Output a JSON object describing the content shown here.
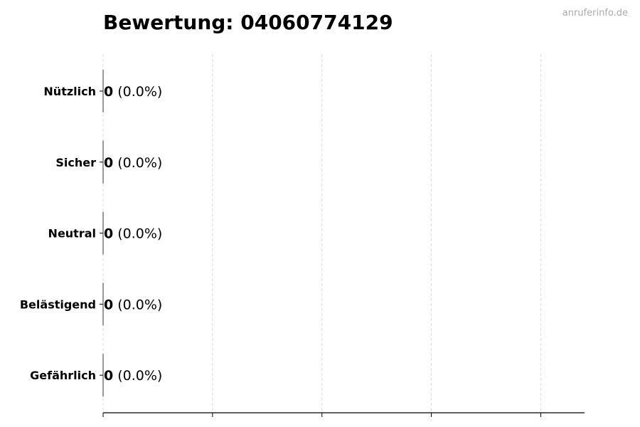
{
  "watermark": "anruferinfo.de",
  "chart_data": {
    "type": "bar",
    "orientation": "horizontal",
    "title": "Bewertung: 04060774129",
    "categories": [
      "Nützlich",
      "Sicher",
      "Neutral",
      "Belästigend",
      "Gefährlich"
    ],
    "values": [
      0,
      0,
      0,
      0,
      0
    ],
    "value_labels": [
      "0",
      "0",
      "0",
      "0",
      "0"
    ],
    "percent_labels": [
      "(0.0%)",
      "(0.0%)",
      "(0.0%)",
      "(0.0%)",
      "(0.0%)"
    ],
    "xlabel": "",
    "ylabel": "",
    "xlim": [
      0,
      4.4
    ],
    "xticks": [
      0,
      1,
      2,
      3,
      4
    ],
    "xtick_labels_shown": false,
    "grid": "vertical dashed",
    "colors": {
      "grid": "#d9d9d9",
      "axis": "#000000",
      "watermark": "#aaaaaa",
      "bar_edge": "#333333"
    }
  }
}
